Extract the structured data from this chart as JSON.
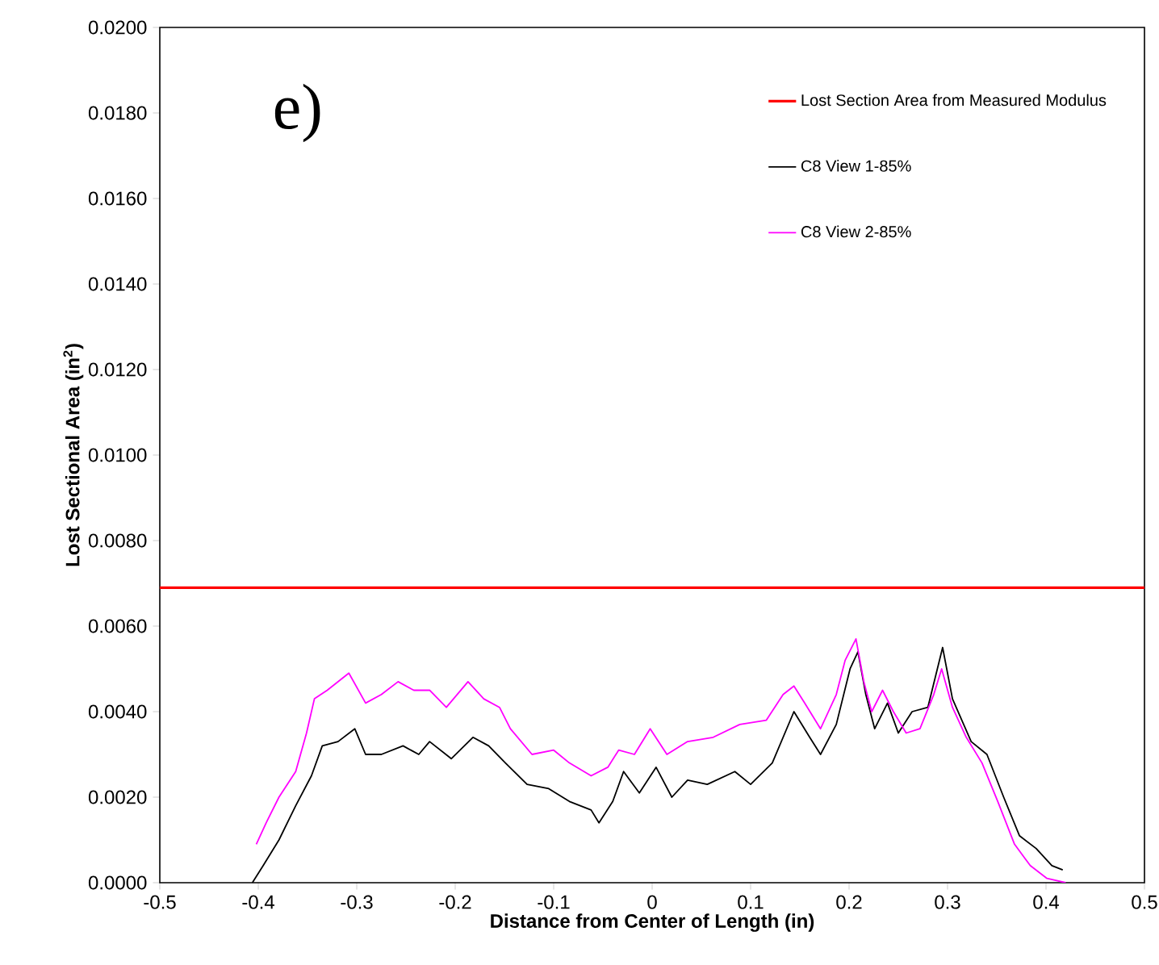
{
  "chart_data": {
    "type": "line",
    "xlabel": "Distance from Center of Length (in)",
    "ylabel": "Lost Sectional Area (in$^{2}$)",
    "annotations": [
      "e)"
    ],
    "xlim": [
      -0.5,
      0.5
    ],
    "xticks": [
      -0.5,
      -0.4,
      -0.3,
      -0.2,
      -0.1,
      0,
      0.1,
      0.2,
      0.3,
      0.4,
      0.5
    ],
    "ylim": [
      0,
      0.02
    ],
    "yticks": [
      {
        "value": 0,
        "label": "0.0000"
      },
      {
        "value": 0.002,
        "label": "0.0020"
      },
      {
        "value": 0.004,
        "label": "0.0040"
      },
      {
        "value": 0.006,
        "label": "0.0060"
      },
      {
        "value": 0.008,
        "label": "0.0080"
      },
      {
        "value": 0.01,
        "label": "0.0100"
      },
      {
        "value": 0.012,
        "label": "0.0120"
      },
      {
        "value": 0.014,
        "label": "0.0140"
      },
      {
        "value": 0.016,
        "label": "0.0160"
      },
      {
        "value": 0.018,
        "label": "0.0180"
      },
      {
        "value": 0.02,
        "label": "0.0200"
      }
    ],
    "grid": false,
    "legend": "top right",
    "marker": "none",
    "line_style": "solid",
    "ref_lines": [
      {
        "axis": "y",
        "value": 0.0069,
        "label": "Lost Section Area from Measured Modulus",
        "color": "#ff0000"
      }
    ],
    "series": [
      {
        "name": "C8 View 1-85%",
        "color": "#000000",
        "x": [
          -0.406,
          -0.395,
          -0.379,
          -0.362,
          -0.346,
          -0.335,
          -0.319,
          -0.302,
          -0.291,
          -0.275,
          -0.253,
          -0.237,
          -0.226,
          -0.204,
          -0.182,
          -0.166,
          -0.149,
          -0.127,
          -0.105,
          -0.084,
          -0.062,
          -0.054,
          -0.04,
          -0.029,
          -0.013,
          0.004,
          0.02,
          0.036,
          0.056,
          0.084,
          0.1,
          0.122,
          0.144,
          0.16,
          0.171,
          0.187,
          0.201,
          0.209,
          0.217,
          0.226,
          0.239,
          0.25,
          0.264,
          0.28,
          0.295,
          0.305,
          0.324,
          0.34,
          0.357,
          0.373,
          0.39,
          0.406,
          0.417
        ],
        "values": [
          0.0,
          0.0004,
          0.001,
          0.0018,
          0.0025,
          0.0032,
          0.0033,
          0.0036,
          0.003,
          0.003,
          0.0032,
          0.003,
          0.0033,
          0.0029,
          0.0034,
          0.0032,
          0.0028,
          0.0023,
          0.0022,
          0.0019,
          0.0017,
          0.0014,
          0.0019,
          0.0026,
          0.0021,
          0.0027,
          0.002,
          0.0024,
          0.0023,
          0.0026,
          0.0023,
          0.0028,
          0.004,
          0.0034,
          0.003,
          0.0037,
          0.005,
          0.0054,
          0.0044,
          0.0036,
          0.0042,
          0.0035,
          0.004,
          0.0041,
          0.0055,
          0.0043,
          0.0033,
          0.003,
          0.002,
          0.0011,
          0.0008,
          0.0004,
          0.0003
        ]
      },
      {
        "name": "C8 View 2-85%",
        "color": "#ff00ff",
        "x": [
          -0.402,
          -0.392,
          -0.379,
          -0.362,
          -0.351,
          -0.343,
          -0.33,
          -0.308,
          -0.291,
          -0.275,
          -0.258,
          -0.242,
          -0.226,
          -0.209,
          -0.187,
          -0.171,
          -0.155,
          -0.144,
          -0.133,
          -0.122,
          -0.1,
          -0.084,
          -0.062,
          -0.045,
          -0.034,
          -0.018,
          -0.002,
          0.015,
          0.036,
          0.062,
          0.089,
          0.116,
          0.133,
          0.144,
          0.155,
          0.171,
          0.187,
          0.196,
          0.207,
          0.215,
          0.223,
          0.234,
          0.245,
          0.258,
          0.272,
          0.286,
          0.294,
          0.305,
          0.319,
          0.335,
          0.351,
          0.368,
          0.384,
          0.401,
          0.42
        ],
        "values": [
          0.0009,
          0.0014,
          0.002,
          0.0026,
          0.0035,
          0.0043,
          0.0045,
          0.0049,
          0.0042,
          0.0044,
          0.0047,
          0.0045,
          0.0045,
          0.0041,
          0.0047,
          0.0043,
          0.0041,
          0.0036,
          0.0033,
          0.003,
          0.0031,
          0.0028,
          0.0025,
          0.0027,
          0.0031,
          0.003,
          0.0036,
          0.003,
          0.0033,
          0.0034,
          0.0037,
          0.0038,
          0.0044,
          0.0046,
          0.0042,
          0.0036,
          0.0044,
          0.0052,
          0.0057,
          0.0047,
          0.004,
          0.0045,
          0.004,
          0.0035,
          0.0036,
          0.0044,
          0.005,
          0.0041,
          0.0034,
          0.0028,
          0.0019,
          0.0009,
          0.0004,
          0.0001,
          0.0
        ]
      }
    ]
  }
}
